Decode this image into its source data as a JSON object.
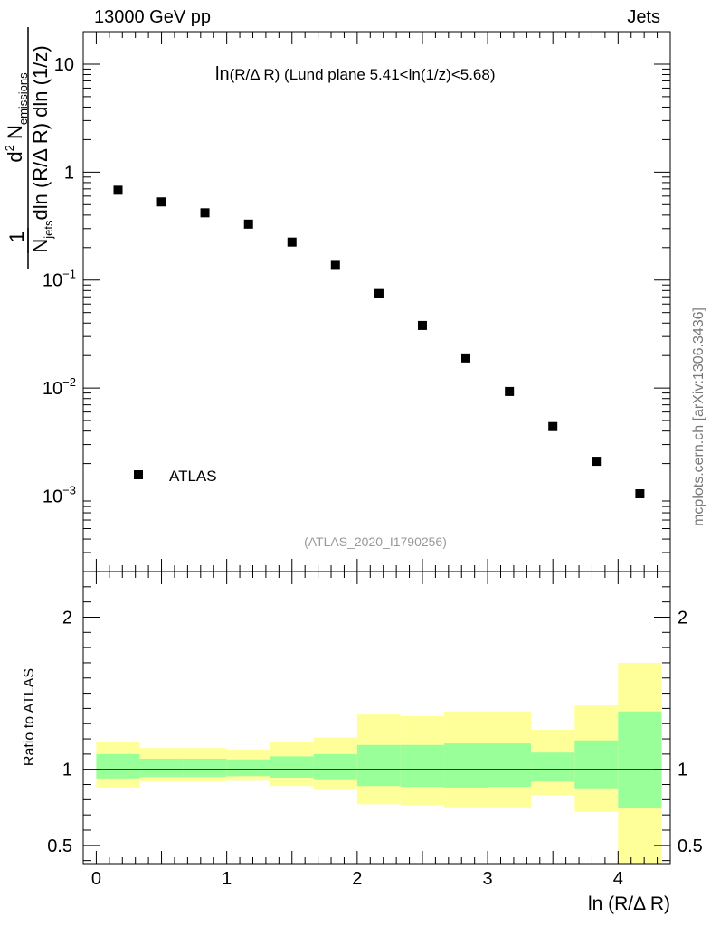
{
  "header": {
    "left": "13000 GeV pp",
    "right": "Jets",
    "source": "mcplots.cern.ch [arXiv:1306.3436]"
  },
  "plot": {
    "title_main": "ln",
    "title_arg": "(R/Δ R)",
    "title_rest": " (Lund plane 5.41<ln(1/z)<5.68)",
    "analysis": "(ATLAS_2020_I1790256)",
    "legend": "ATLAS",
    "ratio_ylabel": "Ratio to ATLAS",
    "xlabel": "ln (R/Δ R)"
  },
  "ylabel": {
    "num_d": "d",
    "num_exp": "2",
    "num_N": "N",
    "num_sub": "emissions",
    "den_N": "N",
    "den_sub": "jets",
    "den_rest": "dln (R/Δ R) dln (1/z)",
    "prefactor": "1"
  },
  "colors": {
    "outer_band": "#ffff99",
    "inner_band": "#99ff99",
    "marker": "#000000"
  },
  "chart_data": [
    {
      "type": "scatter",
      "yscale": "log",
      "xlim": [
        -0.1,
        4.4
      ],
      "ylim": [
        0.0002,
        20
      ],
      "y_ticks": [
        {
          "v": 10,
          "m": "10",
          "e": ""
        },
        {
          "v": 1,
          "m": "1",
          "e": ""
        },
        {
          "v": 0.1,
          "m": "10",
          "e": "−1"
        },
        {
          "v": 0.01,
          "m": "10",
          "e": "−2"
        },
        {
          "v": 0.001,
          "m": "10",
          "e": "−3"
        }
      ],
      "series": [
        {
          "name": "ATLAS",
          "x": [
            0.167,
            0.5,
            0.833,
            1.167,
            1.5,
            1.833,
            2.167,
            2.5,
            2.833,
            3.167,
            3.5,
            3.833,
            4.167
          ],
          "values": [
            0.68,
            0.53,
            0.42,
            0.33,
            0.225,
            0.137,
            0.075,
            0.038,
            0.019,
            0.0093,
            0.0044,
            0.0021,
            0.00105
          ]
        }
      ]
    },
    {
      "type": "area",
      "xlim": [
        -0.1,
        4.4
      ],
      "ylim": [
        0.38,
        2.3
      ],
      "y_ticks": [
        "2",
        "1",
        "0.5"
      ],
      "y_tick_values": [
        2,
        1,
        0.5
      ],
      "x_ticks": [
        "0",
        "1",
        "2",
        "3",
        "4"
      ],
      "x_tick_values": [
        0,
        1,
        2,
        3,
        4
      ],
      "xlabel": "ln (R/Δ R)",
      "ylabel": "Ratio to ATLAS",
      "reference_line": 1,
      "bins": [
        {
          "lo": 0.0,
          "hi": 0.333,
          "outer": [
            0.88,
            1.18
          ],
          "inner": [
            0.94,
            1.1
          ]
        },
        {
          "lo": 0.333,
          "hi": 0.667,
          "outer": [
            0.92,
            1.14
          ],
          "inner": [
            0.95,
            1.07
          ]
        },
        {
          "lo": 0.667,
          "hi": 1.0,
          "outer": [
            0.92,
            1.14
          ],
          "inner": [
            0.95,
            1.07
          ]
        },
        {
          "lo": 1.0,
          "hi": 1.333,
          "outer": [
            0.925,
            1.13
          ],
          "inner": [
            0.955,
            1.065
          ]
        },
        {
          "lo": 1.333,
          "hi": 1.667,
          "outer": [
            0.89,
            1.18
          ],
          "inner": [
            0.945,
            1.085
          ]
        },
        {
          "lo": 1.667,
          "hi": 2.0,
          "outer": [
            0.865,
            1.21
          ],
          "inner": [
            0.935,
            1.1
          ]
        },
        {
          "lo": 2.0,
          "hi": 2.333,
          "outer": [
            0.77,
            1.36
          ],
          "inner": [
            0.89,
            1.16
          ]
        },
        {
          "lo": 2.333,
          "hi": 2.667,
          "outer": [
            0.765,
            1.35
          ],
          "inner": [
            0.885,
            1.16
          ]
        },
        {
          "lo": 2.667,
          "hi": 3.0,
          "outer": [
            0.75,
            1.38
          ],
          "inner": [
            0.88,
            1.17
          ]
        },
        {
          "lo": 3.0,
          "hi": 3.333,
          "outer": [
            0.75,
            1.38
          ],
          "inner": [
            0.885,
            1.17
          ]
        },
        {
          "lo": 3.333,
          "hi": 3.667,
          "outer": [
            0.83,
            1.26
          ],
          "inner": [
            0.92,
            1.11
          ]
        },
        {
          "lo": 3.667,
          "hi": 4.0,
          "outer": [
            0.72,
            1.42
          ],
          "inner": [
            0.875,
            1.19
          ]
        },
        {
          "lo": 4.0,
          "hi": 4.333,
          "outer": [
            0.37,
            1.7
          ],
          "inner": [
            0.745,
            1.38
          ]
        }
      ]
    }
  ]
}
